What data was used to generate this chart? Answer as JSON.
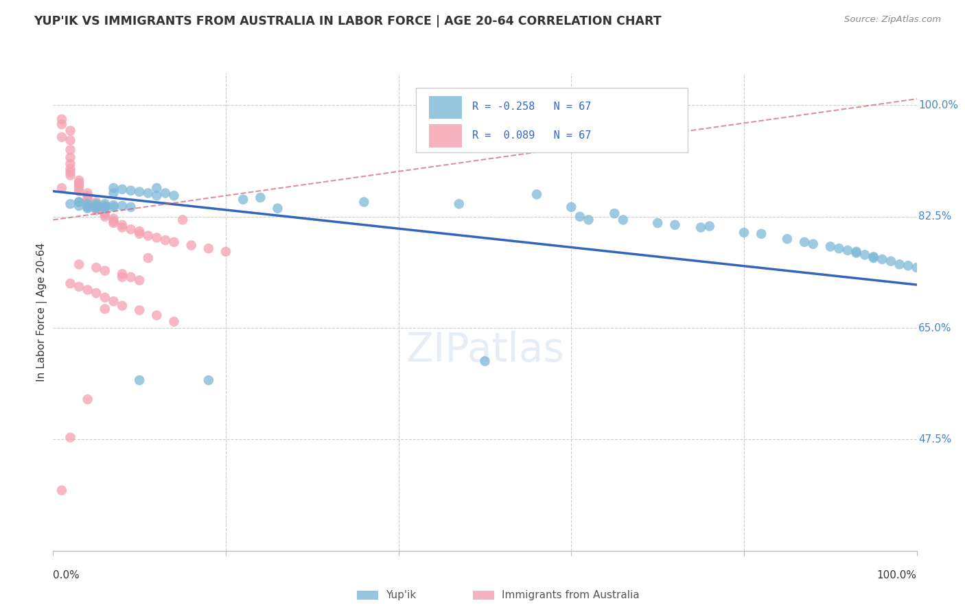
{
  "title": "YUP'IK VS IMMIGRANTS FROM AUSTRALIA IN LABOR FORCE | AGE 20-64 CORRELATION CHART",
  "source": "Source: ZipAtlas.com",
  "ylabel": "In Labor Force | Age 20-64",
  "ytick_labels": [
    "47.5%",
    "65.0%",
    "82.5%",
    "100.0%"
  ],
  "ytick_values": [
    0.475,
    0.65,
    0.825,
    1.0
  ],
  "legend_blue_R": -0.258,
  "legend_pink_R": 0.089,
  "legend_N": 67,
  "blue_color": "#7db8d8",
  "pink_color": "#f4a0b0",
  "blue_line_color": "#3366bb",
  "pink_line_color": "#d06070",
  "background_color": "#ffffff",
  "grid_color": "#cccccc",
  "xlim": [
    0.0,
    1.0
  ],
  "ylim": [
    0.3,
    1.05
  ],
  "blue_line_x0": 0.0,
  "blue_line_y0": 0.865,
  "blue_line_x1": 1.0,
  "blue_line_y1": 0.718,
  "pink_line_x0": 0.0,
  "pink_line_y0": 0.82,
  "pink_line_x1": 1.0,
  "pink_line_y1": 1.01,
  "blue_scatter_x": [
    0.07,
    0.07,
    0.08,
    0.09,
    0.1,
    0.11,
    0.12,
    0.12,
    0.13,
    0.14,
    0.02,
    0.03,
    0.03,
    0.03,
    0.04,
    0.04,
    0.04,
    0.04,
    0.05,
    0.05,
    0.05,
    0.05,
    0.06,
    0.06,
    0.06,
    0.06,
    0.07,
    0.07,
    0.08,
    0.09,
    0.22,
    0.24,
    0.36,
    0.47,
    0.56,
    0.6,
    0.61,
    0.62,
    0.65,
    0.66,
    0.7,
    0.72,
    0.75,
    0.76,
    0.8,
    0.82,
    0.85,
    0.87,
    0.88,
    0.9,
    0.91,
    0.92,
    0.93,
    0.93,
    0.94,
    0.95,
    0.95,
    0.96,
    0.97,
    0.98,
    0.99,
    1.0,
    0.1,
    0.18,
    0.26,
    0.5
  ],
  "blue_scatter_y": [
    0.87,
    0.862,
    0.868,
    0.866,
    0.864,
    0.862,
    0.858,
    0.87,
    0.862,
    0.858,
    0.845,
    0.848,
    0.848,
    0.842,
    0.845,
    0.842,
    0.84,
    0.838,
    0.845,
    0.842,
    0.84,
    0.838,
    0.845,
    0.842,
    0.84,
    0.838,
    0.843,
    0.84,
    0.842,
    0.84,
    0.852,
    0.855,
    0.848,
    0.845,
    0.86,
    0.84,
    0.825,
    0.82,
    0.83,
    0.82,
    0.815,
    0.812,
    0.808,
    0.81,
    0.8,
    0.798,
    0.79,
    0.785,
    0.782,
    0.778,
    0.775,
    0.772,
    0.77,
    0.768,
    0.765,
    0.762,
    0.76,
    0.758,
    0.755,
    0.75,
    0.748,
    0.745,
    0.568,
    0.568,
    0.838,
    0.598
  ],
  "pink_scatter_x": [
    0.01,
    0.01,
    0.01,
    0.01,
    0.02,
    0.02,
    0.02,
    0.02,
    0.02,
    0.02,
    0.02,
    0.02,
    0.03,
    0.03,
    0.03,
    0.03,
    0.03,
    0.04,
    0.04,
    0.04,
    0.04,
    0.05,
    0.05,
    0.05,
    0.05,
    0.05,
    0.06,
    0.06,
    0.06,
    0.07,
    0.07,
    0.07,
    0.08,
    0.08,
    0.09,
    0.1,
    0.1,
    0.11,
    0.12,
    0.13,
    0.14,
    0.16,
    0.18,
    0.2,
    0.03,
    0.05,
    0.06,
    0.08,
    0.09,
    0.1,
    0.02,
    0.03,
    0.04,
    0.05,
    0.06,
    0.07,
    0.08,
    0.1,
    0.12,
    0.14,
    0.01,
    0.02,
    0.04,
    0.06,
    0.08,
    0.11,
    0.15
  ],
  "pink_scatter_y": [
    0.978,
    0.97,
    0.95,
    0.87,
    0.96,
    0.945,
    0.93,
    0.918,
    0.908,
    0.9,
    0.895,
    0.89,
    0.882,
    0.878,
    0.875,
    0.87,
    0.865,
    0.862,
    0.858,
    0.855,
    0.85,
    0.848,
    0.845,
    0.842,
    0.838,
    0.835,
    0.832,
    0.828,
    0.825,
    0.822,
    0.818,
    0.815,
    0.812,
    0.808,
    0.805,
    0.802,
    0.798,
    0.795,
    0.792,
    0.788,
    0.785,
    0.78,
    0.775,
    0.77,
    0.75,
    0.745,
    0.74,
    0.735,
    0.73,
    0.725,
    0.72,
    0.715,
    0.71,
    0.705,
    0.698,
    0.692,
    0.685,
    0.678,
    0.67,
    0.66,
    0.395,
    0.478,
    0.538,
    0.68,
    0.73,
    0.76,
    0.82
  ]
}
